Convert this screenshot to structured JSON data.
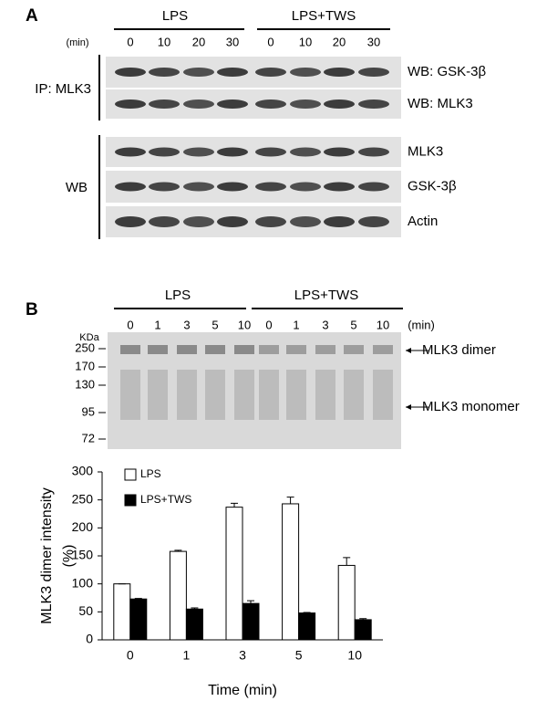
{
  "panel_a": {
    "label": "A",
    "groups": [
      "LPS",
      "LPS+TWS"
    ],
    "unit": "(min)",
    "times": [
      "0",
      "10",
      "20",
      "30",
      "0",
      "10",
      "20",
      "30"
    ],
    "row_labels": [
      "WB: GSK-3β",
      "WB: MLK3",
      "MLK3",
      "GSK-3β",
      "Actin"
    ],
    "section_labels": [
      "IP: MLK3",
      "WB"
    ]
  },
  "panel_b": {
    "label": "B",
    "groups": [
      "LPS",
      "LPS+TWS"
    ],
    "unit": "(min)",
    "times": [
      "0",
      "1",
      "3",
      "5",
      "10",
      "0",
      "1",
      "3",
      "5",
      "10"
    ],
    "marker_unit": "KDa",
    "markers": [
      "250",
      "170",
      "130",
      "95",
      "72"
    ],
    "arrows": [
      "MLK3 dimer",
      "MLK3 monomer"
    ]
  },
  "chart_data": {
    "type": "bar",
    "categories": [
      "0",
      "1",
      "3",
      "5",
      "10"
    ],
    "series": [
      {
        "name": "LPS",
        "color": "#ffffff",
        "values": [
          100,
          158,
          237,
          243,
          133
        ],
        "errors": [
          0,
          2,
          7,
          12,
          14
        ]
      },
      {
        "name": "LPS+TWS",
        "color": "#000000",
        "values": [
          73,
          55,
          65,
          48,
          36
        ],
        "errors": [
          1,
          2,
          5,
          1,
          2
        ]
      }
    ],
    "ylim": [
      0,
      300
    ],
    "yticks": [
      0,
      50,
      100,
      150,
      200,
      250,
      300
    ],
    "ylabel": [
      "MLK3 dimer intensity",
      "(%)"
    ],
    "xlabel": "Time (min)",
    "legend": "upper-left"
  }
}
